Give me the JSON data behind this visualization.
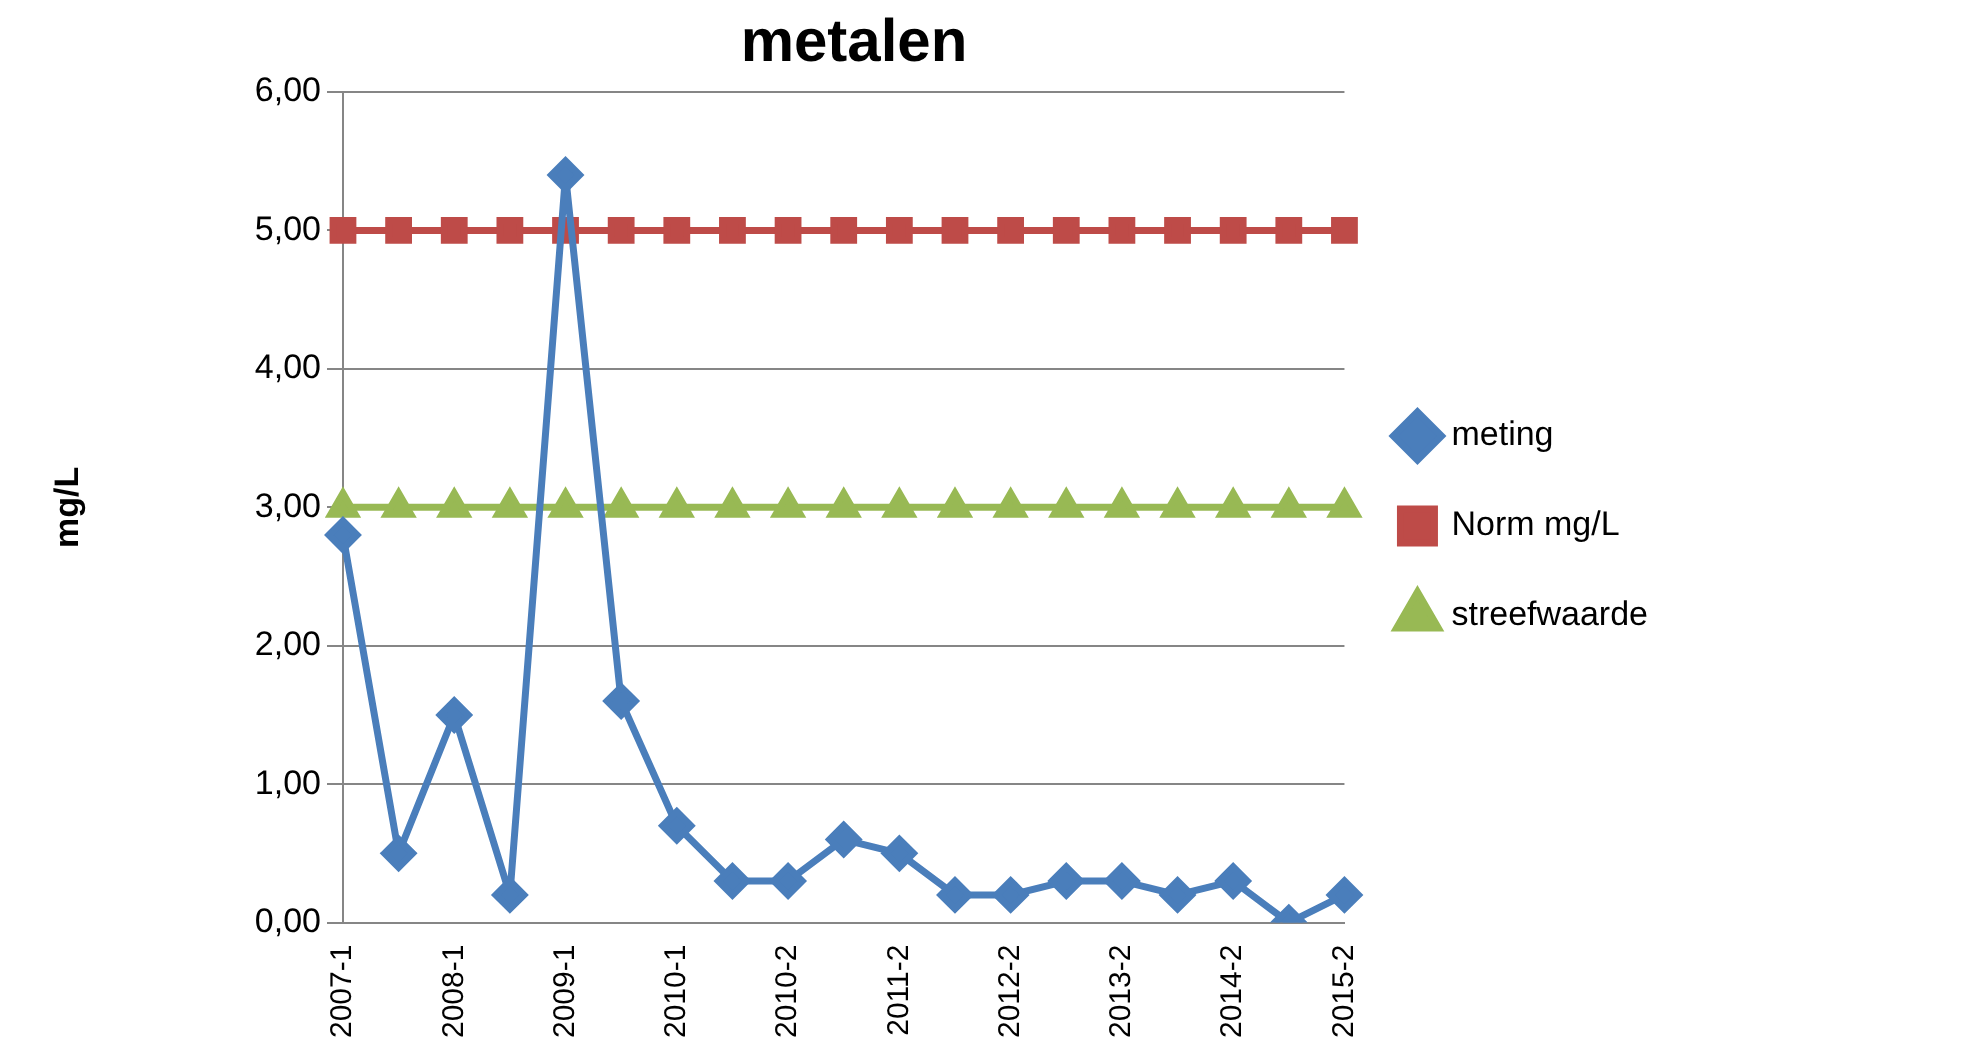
{
  "chart_data": {
    "type": "line",
    "title": "metalen",
    "ylabel": "mg/L",
    "categories": [
      "2007-1",
      null,
      "2008-1",
      null,
      "2009-1",
      null,
      "2010-1",
      null,
      "2010-2",
      null,
      "2011-2",
      null,
      "2012-2",
      null,
      "2013-2",
      null,
      "2014-2",
      null,
      "2015-2"
    ],
    "series": [
      {
        "name": "meting",
        "color": "#4a7ebb",
        "marker": "diamond",
        "values": [
          2.8,
          0.5,
          1.5,
          0.2,
          5.4,
          1.6,
          0.7,
          0.3,
          0.3,
          0.6,
          0.5,
          0.2,
          0.2,
          0.3,
          0.3,
          0.2,
          0.3,
          0.0,
          0.2
        ]
      },
      {
        "name": "Norm mg/L",
        "color": "#be4b48",
        "marker": "square",
        "values": [
          5,
          5,
          5,
          5,
          5,
          5,
          5,
          5,
          5,
          5,
          5,
          5,
          5,
          5,
          5,
          5,
          5,
          5,
          5
        ]
      },
      {
        "name": "streefwaarde",
        "color": "#98b954",
        "marker": "triangle",
        "values": [
          3,
          3,
          3,
          3,
          3,
          3,
          3,
          3,
          3,
          3,
          3,
          3,
          3,
          3,
          3,
          3,
          3,
          3,
          3
        ]
      }
    ],
    "ylim": [
      0,
      6
    ],
    "yticks": [
      {
        "value": 0,
        "label": "0,00"
      },
      {
        "value": 1,
        "label": "1,00"
      },
      {
        "value": 2,
        "label": "2,00"
      },
      {
        "value": 3,
        "label": "3,00"
      },
      {
        "value": 4,
        "label": "4,00"
      },
      {
        "value": 5,
        "label": "5,00"
      },
      {
        "value": 6,
        "label": "6,00"
      }
    ],
    "grid": "y",
    "legend": "right",
    "line_style": "solid"
  }
}
